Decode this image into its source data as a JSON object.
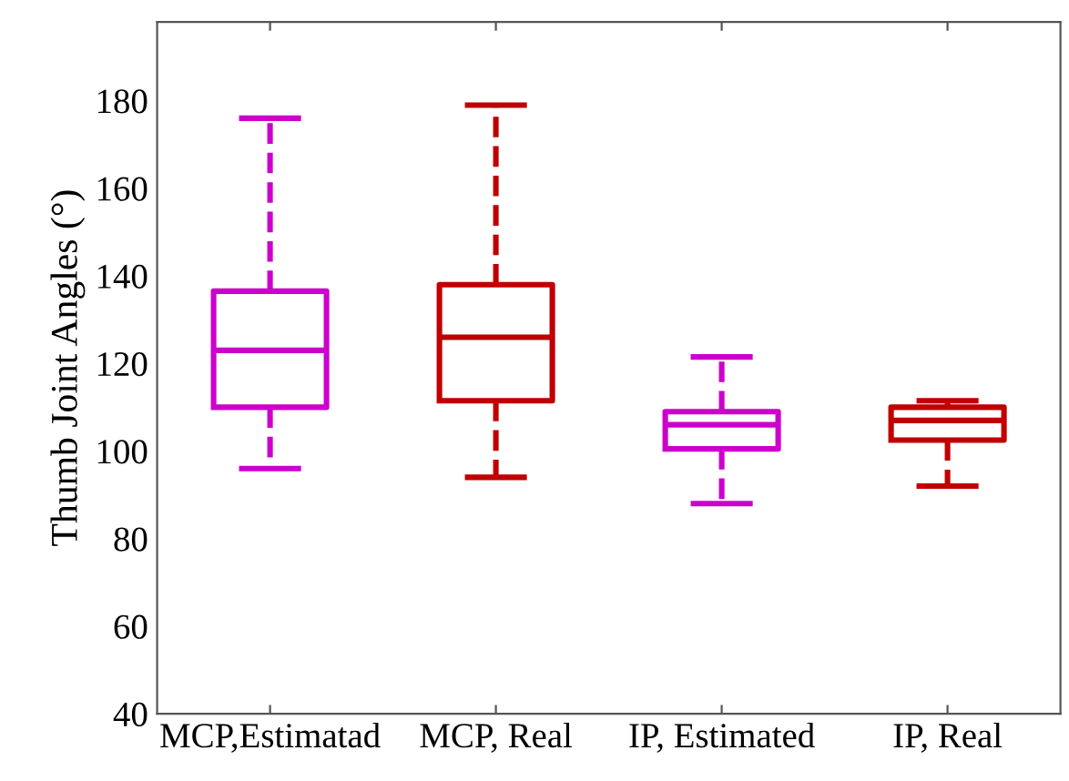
{
  "chart_data": {
    "type": "box",
    "ylabel": "Thumb Joint Angles (°)",
    "categories": [
      "MCP,Estimatad",
      "MCP, Real",
      "IP, Estimated",
      "IP, Real"
    ],
    "boxes": [
      {
        "low": 96,
        "q1": 110,
        "median": 123,
        "q3": 136.5,
        "high": 176
      },
      {
        "low": 94,
        "q1": 111.5,
        "median": 126,
        "q3": 138,
        "high": 179
      },
      {
        "low": 88,
        "q1": 100.5,
        "median": 106,
        "q3": 109,
        "high": 121.5
      },
      {
        "low": 92,
        "q1": 102.5,
        "median": 107,
        "q3": 110,
        "high": 111.5
      }
    ],
    "colors": [
      "#cc00cc",
      "#c00000",
      "#cc00cc",
      "#c00000"
    ],
    "line_style": "dashed",
    "ylim": [
      40,
      198
    ],
    "yticks": [
      40,
      60,
      80,
      100,
      120,
      140,
      160,
      180
    ],
    "grid": false
  }
}
